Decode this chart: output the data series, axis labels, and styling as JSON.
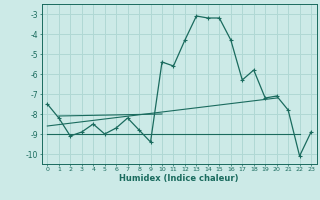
{
  "xlabel": "Humidex (Indice chaleur)",
  "ylabel": "",
  "bg_color": "#cceae7",
  "grid_color": "#b0d8d4",
  "line_color": "#1a6b5e",
  "xlim": [
    -0.5,
    23.5
  ],
  "ylim": [
    -10.5,
    -2.5
  ],
  "yticks": [
    -10,
    -9,
    -8,
    -7,
    -6,
    -5,
    -4,
    -3
  ],
  "xticks": [
    0,
    1,
    2,
    3,
    4,
    5,
    6,
    7,
    8,
    9,
    10,
    11,
    12,
    13,
    14,
    15,
    16,
    17,
    18,
    19,
    20,
    21,
    22,
    23
  ],
  "curve1_x": [
    0,
    1,
    2,
    3,
    4,
    5,
    6,
    7,
    8,
    9,
    10,
    11,
    12,
    13,
    14,
    15,
    16,
    17,
    18,
    19,
    20,
    21,
    22,
    23
  ],
  "curve1_y": [
    -7.5,
    -8.2,
    -9.1,
    -8.9,
    -8.5,
    -9.0,
    -8.7,
    -8.2,
    -8.8,
    -9.4,
    -5.4,
    -5.6,
    -4.3,
    -3.1,
    -3.2,
    -3.2,
    -4.3,
    -6.3,
    -5.8,
    -7.2,
    -7.1,
    -7.8,
    -10.1,
    -8.9
  ],
  "curve2_x": [
    1,
    10
  ],
  "curve2_y": [
    -8.1,
    -8.0
  ],
  "curve3_x": [
    0,
    20
  ],
  "curve3_y": [
    -8.6,
    -7.2
  ],
  "curve4_x": [
    0,
    22
  ],
  "curve4_y": [
    -9.0,
    -9.0
  ]
}
